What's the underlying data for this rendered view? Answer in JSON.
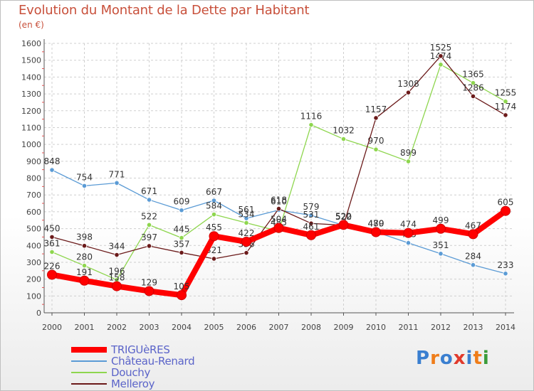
{
  "chart_data": {
    "type": "line",
    "title": "Evolution du Montant de la Dette par Habitant",
    "subtitle": "(en €)",
    "x": [
      "2000",
      "2001",
      "2002",
      "2003",
      "2004",
      "2005",
      "2006",
      "2007",
      "2008",
      "2009",
      "2010",
      "2011",
      "2012",
      "2013",
      "2014"
    ],
    "yticks": [
      0,
      100,
      200,
      300,
      400,
      500,
      600,
      700,
      800,
      900,
      1000,
      1100,
      1200,
      1300,
      1400,
      1500,
      1600
    ],
    "ylim": [
      0,
      1600
    ],
    "grid": true,
    "legend_position": "bottom-left",
    "series": [
      {
        "name": "TRIGUèRES",
        "color": "#ff0000",
        "values": [
          226,
          191,
          158,
          129,
          105,
          455,
          422,
          504,
          461,
          522,
          479,
          474,
          499,
          467,
          605
        ]
      },
      {
        "name": "Château-Renard",
        "color": "#5b9bd5",
        "values": [
          848,
          754,
          771,
          671,
          609,
          667,
          561,
          610,
          579,
          520,
          480,
          415,
          351,
          284,
          233
        ]
      },
      {
        "name": "Douchy",
        "color": "#8ed64e",
        "values": [
          361,
          280,
          196,
          522,
          445,
          584,
          534,
          485,
          1116,
          1032,
          970,
          899,
          1474,
          1365,
          1255
        ]
      },
      {
        "name": "Melleroy",
        "color": "#6b1a1a",
        "values": [
          450,
          398,
          344,
          397,
          357,
          321,
          356,
          618,
          531,
          520,
          1157,
          1308,
          1525,
          1286,
          1174
        ]
      }
    ]
  },
  "logo": {
    "letters": [
      "P",
      "r",
      "o",
      "x",
      "i",
      "t",
      "i"
    ],
    "colors": [
      "#3a7fd0",
      "#ef7d1a",
      "#3a7fd0",
      "#e03a2c",
      "#3a7fd0",
      "#ef7d1a",
      "#3a9c3a"
    ]
  }
}
